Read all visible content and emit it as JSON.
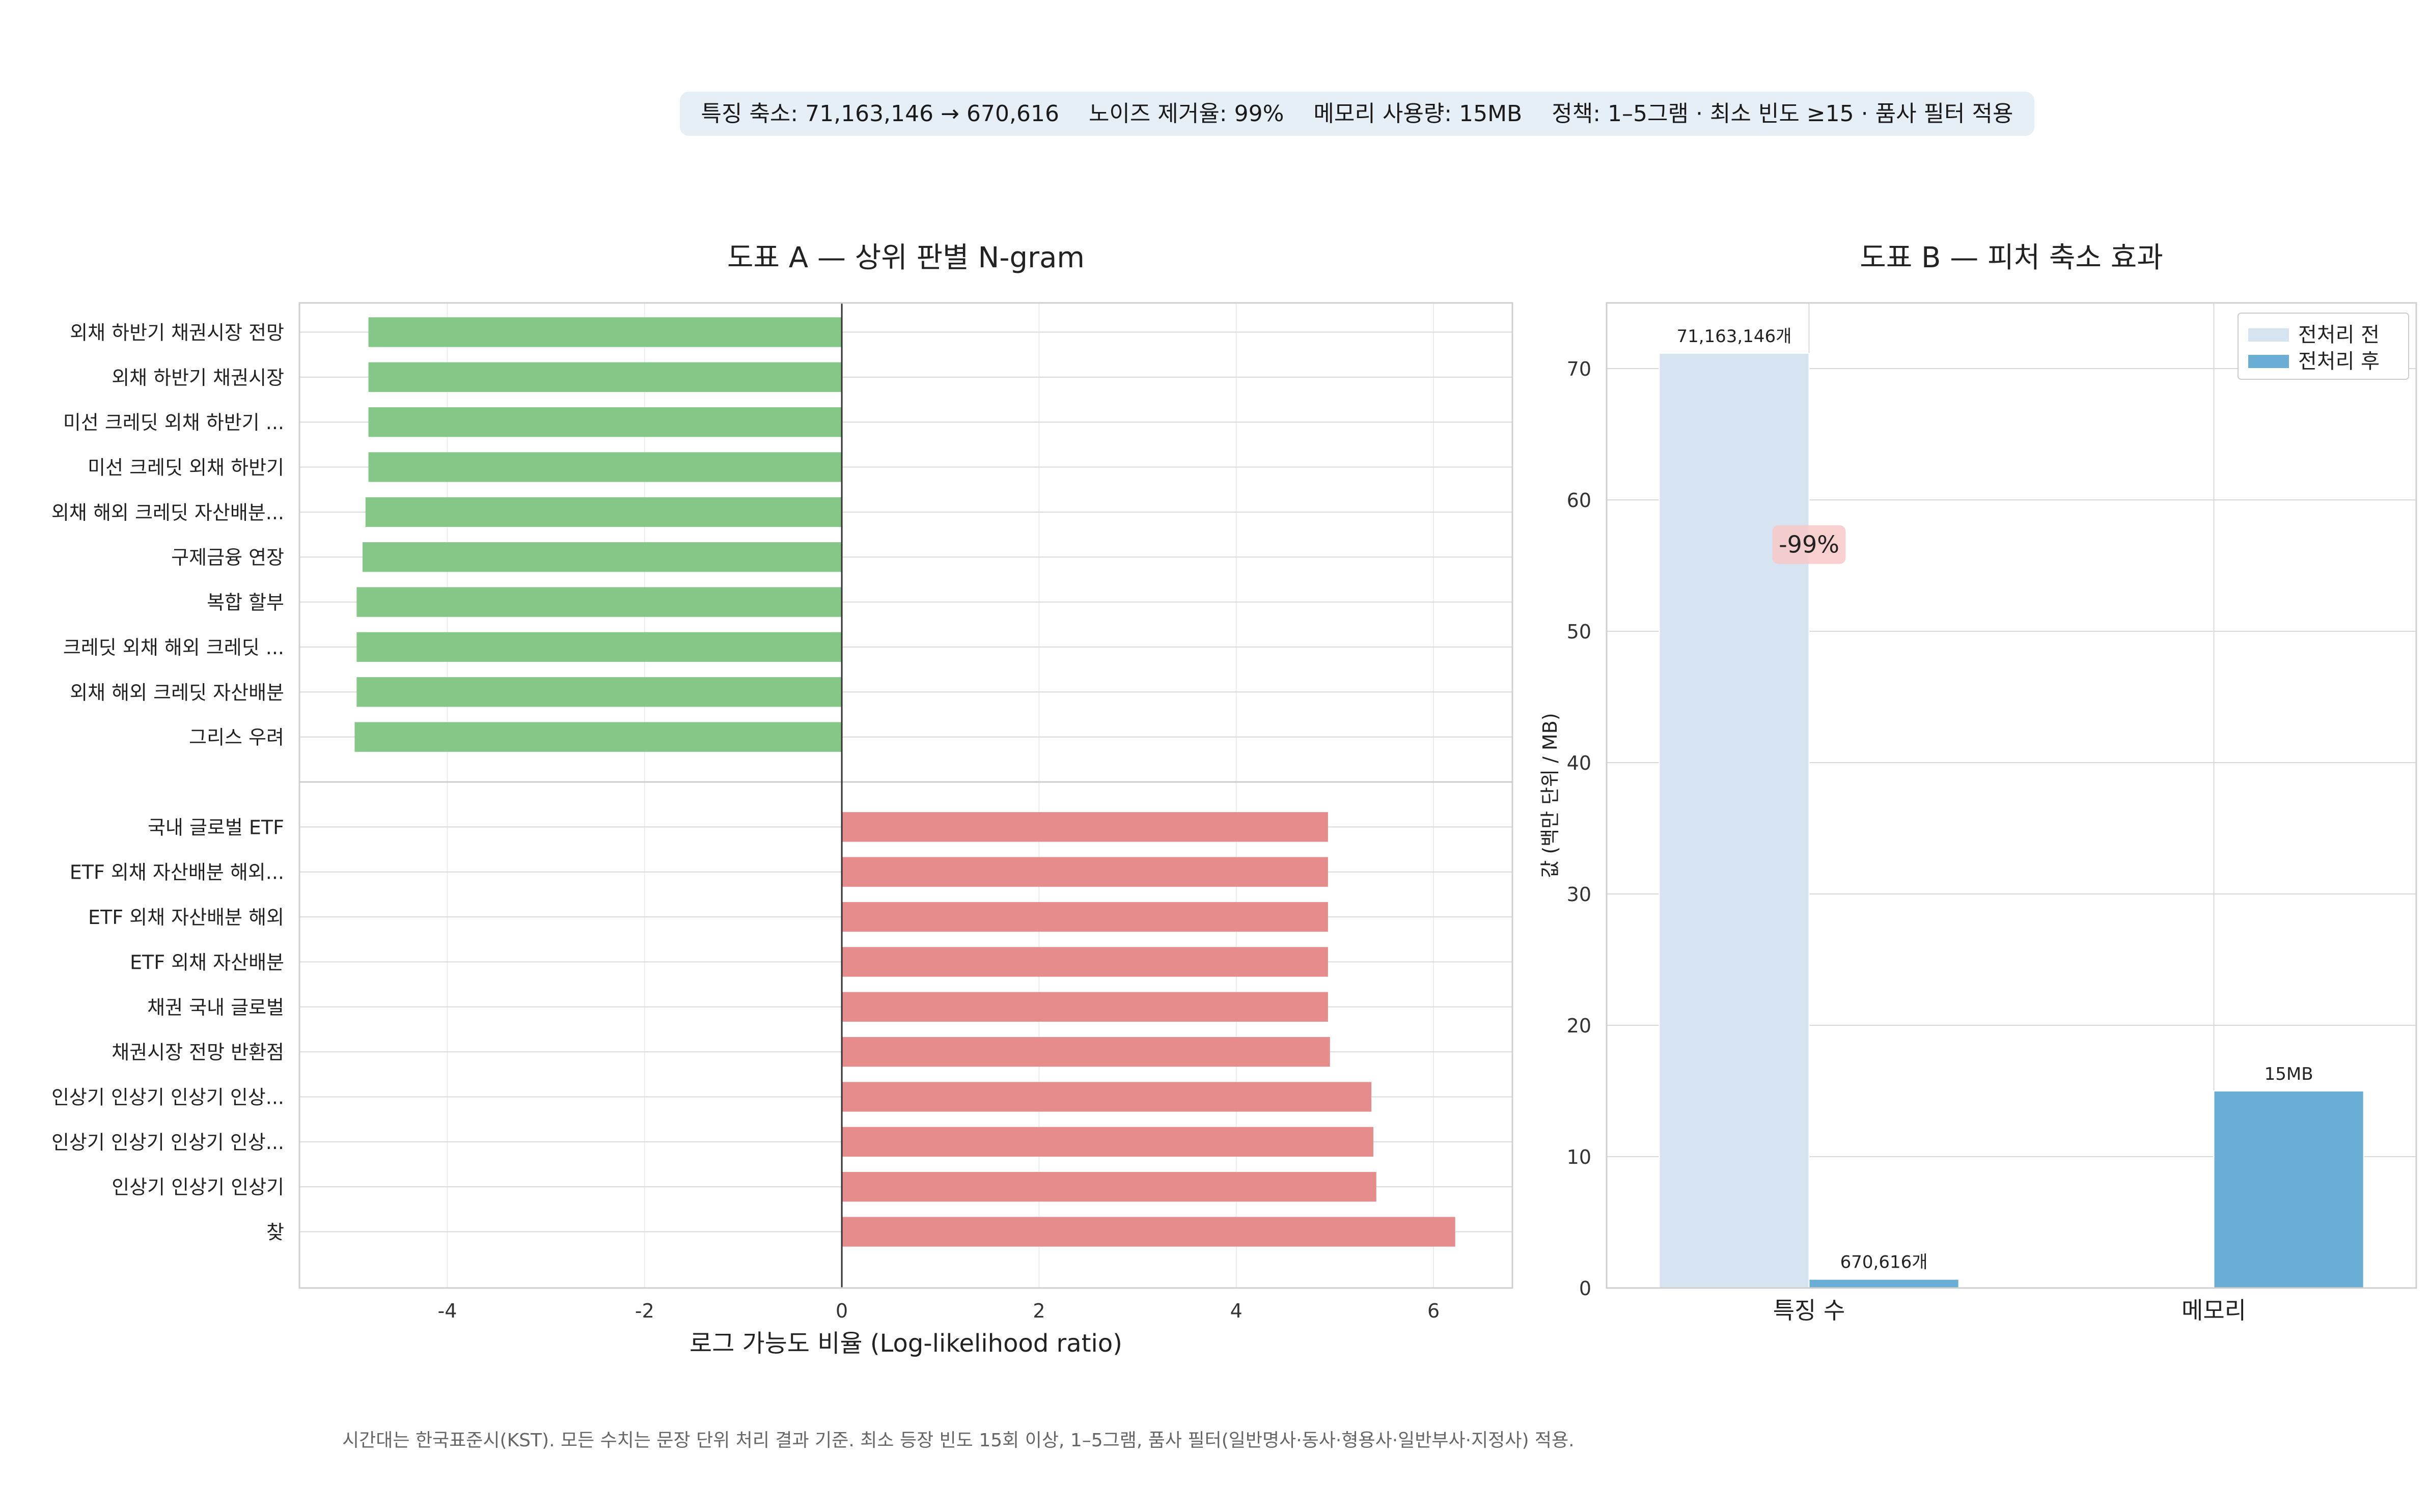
{
  "summary_banner": {
    "features": "특징 축소: 71,163,146 → 670,616",
    "noise": "노이즈 제거율: 99%",
    "memory": "메모리 사용량: 15MB",
    "policy": "정책: 1–5그램 · 최소 빈도 ≥15 · 품사 필터 적용"
  },
  "footnote": "시간대는 한국표준시(KST). 모든 수치는 문장 단위 처리 결과 기준. 최소 등장 빈도 15회 이상, 1–5그램, 품사 필터(일반명사·동사·형용사·일반부사·지정사) 적용.",
  "colors": {
    "negative_bar": "#85c786",
    "positive_bar": "#e68c8c",
    "before_bar": "#d6e4f1",
    "after_bar": "#6aaed6",
    "annotation_bg": "#f8c8c8"
  },
  "chart_data": [
    {
      "type": "bar",
      "orientation": "horizontal",
      "title": "도표 A — 상위 판별 N-gram",
      "xlabel": "로그 가능도 비율 (Log-likelihood ratio)",
      "xlim": [
        -5.5,
        6.8
      ],
      "xticks": [
        -4,
        -2,
        0,
        2,
        4,
        6
      ],
      "grid": true,
      "categories": [
        "외채 하반기 채권시장 전망",
        "외채 하반기 채권시장",
        "미선 크레딧 외채 하반기 ...",
        "미선 크레딧 외채 하반기",
        "외채 해외 크레딧 자산배분...",
        "구제금융 연장",
        "복합 할부",
        "크레딧 외채 해외 크레딧 ...",
        "외채 해외 크레딧 자산배분",
        "그리스 우려",
        "국내 글로벌 ETF",
        "ETF 외채 자산배분 해외...",
        "ETF 외채 자산배분 해외",
        "ETF 외채 자산배분",
        "채권 국내 글로벌",
        "채권시장 전망 반환점",
        "인상기 인상기 인상기 인상...",
        "인상기 인상기 인상기 인상...",
        "인상기 인상기 인상기",
        "찾"
      ],
      "values": [
        -4.8,
        -4.8,
        -4.8,
        -4.8,
        -4.83,
        -4.86,
        -4.92,
        -4.92,
        -4.92,
        -4.94,
        4.93,
        4.93,
        4.93,
        4.93,
        4.93,
        4.95,
        5.37,
        5.39,
        5.42,
        6.22
      ]
    },
    {
      "type": "bar",
      "title": "도표 B — 피처 축소 효과",
      "ylabel": "값 (백만 단위 / MB)",
      "ylim": [
        0,
        75
      ],
      "yticks": [
        0,
        10,
        20,
        30,
        40,
        50,
        60,
        70
      ],
      "grid": true,
      "legend_position": "top-right",
      "categories": [
        "특징 수",
        "메모리"
      ],
      "series": [
        {
          "name": "전처리 전",
          "values": [
            71.163146,
            null
          ],
          "labels": [
            "71,163,146개",
            ""
          ]
        },
        {
          "name": "전처리 후",
          "values": [
            0.670616,
            15
          ],
          "labels": [
            "670,616개",
            "15MB"
          ]
        }
      ],
      "annotation": "-99%",
      "annotation_value": 56.6
    }
  ]
}
